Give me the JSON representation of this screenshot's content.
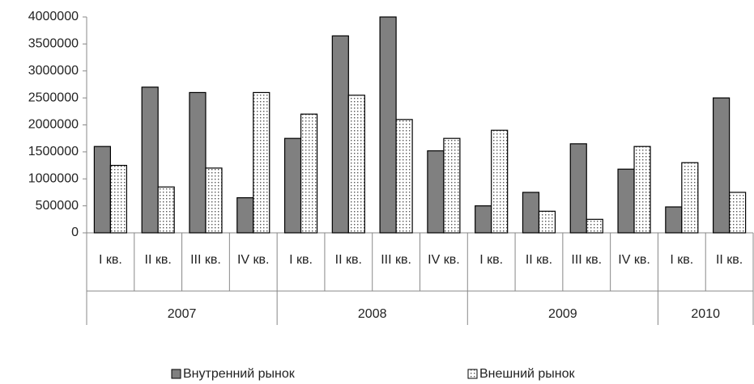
{
  "chart_data": {
    "type": "bar",
    "categories": [
      "I кв.",
      "II кв.",
      "III кв.",
      "IV кв.",
      "I кв.",
      "II кв.",
      "III кв.",
      "IV кв.",
      "I кв.",
      "II кв.",
      "III кв.",
      "IV кв.",
      "I кв.",
      "II кв."
    ],
    "year_labels": [
      "2007",
      null,
      null,
      null,
      "2008",
      null,
      null,
      null,
      "2009",
      null,
      null,
      null,
      "2010",
      null
    ],
    "series": [
      {
        "name": "Внутренний рынок",
        "color": "#808080",
        "values": [
          1600000,
          2700000,
          2600000,
          650000,
          1750000,
          3650000,
          4000000,
          1520000,
          500000,
          750000,
          1650000,
          1180000,
          480000,
          2500000
        ]
      },
      {
        "name": "Внешний рынок",
        "color": "#ffffff",
        "pattern": "dots",
        "values": [
          1250000,
          850000,
          1200000,
          2600000,
          2200000,
          2550000,
          2100000,
          1750000,
          1900000,
          400000,
          250000,
          1600000,
          1300000,
          750000
        ]
      }
    ],
    "ylim": [
      0,
      4000000
    ],
    "yticks": [
      0,
      500000,
      1000000,
      1500000,
      2000000,
      2500000,
      3000000,
      3500000,
      4000000
    ],
    "grid": false,
    "legend": "bottom"
  }
}
